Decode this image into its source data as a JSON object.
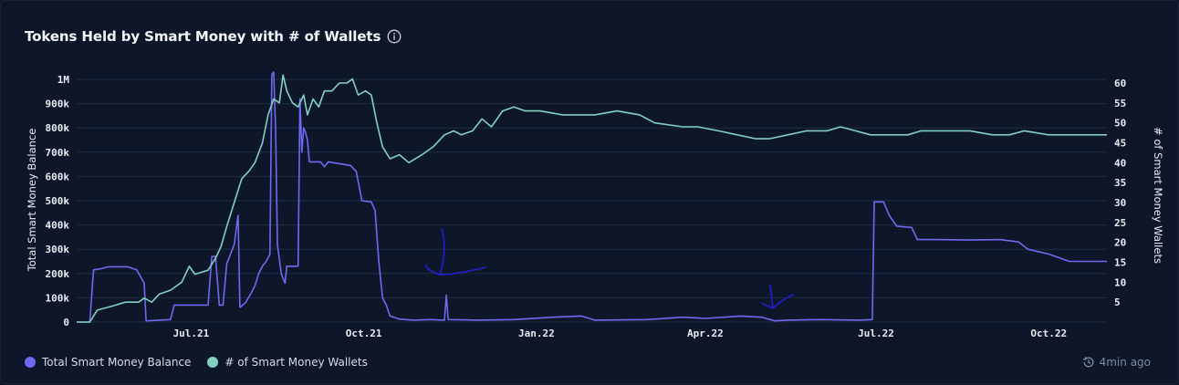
{
  "header": {
    "title": "Tokens Held by Smart Money with # of Wallets",
    "info_icon": "info-circle-icon"
  },
  "legend": {
    "updated": "4min ago",
    "clock_icon": "clock-refresh-icon"
  },
  "chart_data": {
    "type": "line",
    "title": "Tokens Held by Smart Money with # of Wallets",
    "x_axis": {
      "ticks": [
        "Jul.21",
        "Oct.21",
        "Jan.22",
        "Apr.22",
        "Jul.22",
        "Oct.22"
      ],
      "range": [
        "2021-05-01",
        "2022-11-01"
      ]
    },
    "y_left": {
      "label": "Total Smart Money Balance",
      "ticks": [
        "0",
        "100k",
        "200k",
        "300k",
        "400k",
        "500k",
        "600k",
        "700k",
        "800k",
        "900k",
        "1M"
      ],
      "range": [
        0,
        1000000
      ]
    },
    "y_right": {
      "label": "# of Smart Money Wallets",
      "ticks": [
        "5",
        "10",
        "15",
        "20",
        "25",
        "30",
        "35",
        "40",
        "45",
        "50",
        "55",
        "60"
      ],
      "range": [
        0,
        60
      ]
    },
    "grid": true,
    "legend_position": "bottom-left",
    "series": [
      {
        "name": "Total Smart Money Balance",
        "axis": "left",
        "color": "#7068f0",
        "points": [
          [
            "2021-05-01",
            0
          ],
          [
            "2021-05-08",
            0
          ],
          [
            "2021-05-10",
            215000
          ],
          [
            "2021-05-14",
            220000
          ],
          [
            "2021-05-18",
            228000
          ],
          [
            "2021-05-28",
            228000
          ],
          [
            "2021-06-02",
            215000
          ],
          [
            "2021-06-06",
            160000
          ],
          [
            "2021-06-07",
            5000
          ],
          [
            "2021-06-20",
            10000
          ],
          [
            "2021-06-22",
            70000
          ],
          [
            "2021-07-10",
            70000
          ],
          [
            "2021-07-12",
            270000
          ],
          [
            "2021-07-14",
            270000
          ],
          [
            "2021-07-16",
            70000
          ],
          [
            "2021-07-18",
            70000
          ],
          [
            "2021-07-20",
            240000
          ],
          [
            "2021-07-22",
            280000
          ],
          [
            "2021-07-24",
            320000
          ],
          [
            "2021-07-26",
            440000
          ],
          [
            "2021-07-27",
            60000
          ],
          [
            "2021-07-30",
            80000
          ],
          [
            "2021-08-02",
            120000
          ],
          [
            "2021-08-04",
            150000
          ],
          [
            "2021-08-06",
            200000
          ],
          [
            "2021-08-08",
            230000
          ],
          [
            "2021-08-10",
            250000
          ],
          [
            "2021-08-12",
            280000
          ],
          [
            "2021-08-13",
            1020000
          ],
          [
            "2021-08-14",
            1030000
          ],
          [
            "2021-08-15",
            800000
          ],
          [
            "2021-08-16",
            320000
          ],
          [
            "2021-08-18",
            200000
          ],
          [
            "2021-08-20",
            160000
          ],
          [
            "2021-08-21",
            230000
          ],
          [
            "2021-08-27",
            230000
          ],
          [
            "2021-08-28",
            920000
          ],
          [
            "2021-08-29",
            700000
          ],
          [
            "2021-08-30",
            800000
          ],
          [
            "2021-08-31",
            780000
          ],
          [
            "2021-09-01",
            750000
          ],
          [
            "2021-09-02",
            660000
          ],
          [
            "2021-09-08",
            660000
          ],
          [
            "2021-09-10",
            640000
          ],
          [
            "2021-09-12",
            660000
          ],
          [
            "2021-09-20",
            650000
          ],
          [
            "2021-09-24",
            645000
          ],
          [
            "2021-09-27",
            620000
          ],
          [
            "2021-09-30",
            500000
          ],
          [
            "2021-10-05",
            495000
          ],
          [
            "2021-10-07",
            460000
          ],
          [
            "2021-10-09",
            250000
          ],
          [
            "2021-10-11",
            100000
          ],
          [
            "2021-10-13",
            70000
          ],
          [
            "2021-10-15",
            25000
          ],
          [
            "2021-10-20",
            12000
          ],
          [
            "2021-10-28",
            8000
          ],
          [
            "2021-11-05",
            10000
          ],
          [
            "2021-11-13",
            8000
          ],
          [
            "2021-11-14",
            110000
          ],
          [
            "2021-11-15",
            10000
          ],
          [
            "2021-12-01",
            8000
          ],
          [
            "2021-12-20",
            10000
          ],
          [
            "2022-01-10",
            20000
          ],
          [
            "2022-01-25",
            25000
          ],
          [
            "2022-02-01",
            8000
          ],
          [
            "2022-03-01",
            10000
          ],
          [
            "2022-03-20",
            20000
          ],
          [
            "2022-04-01",
            15000
          ],
          [
            "2022-04-20",
            25000
          ],
          [
            "2022-05-01",
            20000
          ],
          [
            "2022-05-08",
            5000
          ],
          [
            "2022-05-15",
            8000
          ],
          [
            "2022-06-01",
            10000
          ],
          [
            "2022-06-22",
            8000
          ],
          [
            "2022-06-29",
            10000
          ],
          [
            "2022-06-30",
            495000
          ],
          [
            "2022-07-05",
            495000
          ],
          [
            "2022-07-08",
            440000
          ],
          [
            "2022-07-12",
            395000
          ],
          [
            "2022-07-20",
            390000
          ],
          [
            "2022-07-23",
            340000
          ],
          [
            "2022-08-01",
            340000
          ],
          [
            "2022-08-20",
            338000
          ],
          [
            "2022-09-05",
            340000
          ],
          [
            "2022-09-15",
            330000
          ],
          [
            "2022-09-20",
            300000
          ],
          [
            "2022-10-01",
            280000
          ],
          [
            "2022-10-12",
            250000
          ],
          [
            "2022-11-01",
            250000
          ]
        ]
      },
      {
        "name": "# of Smart Money Wallets",
        "axis": "right",
        "color": "#84d0c0",
        "points": [
          [
            "2021-05-01",
            0
          ],
          [
            "2021-05-08",
            0
          ],
          [
            "2021-05-12",
            3
          ],
          [
            "2021-05-20",
            4
          ],
          [
            "2021-05-27",
            5
          ],
          [
            "2021-06-03",
            5
          ],
          [
            "2021-06-06",
            6
          ],
          [
            "2021-06-10",
            5
          ],
          [
            "2021-06-14",
            7
          ],
          [
            "2021-06-20",
            8
          ],
          [
            "2021-06-26",
            10
          ],
          [
            "2021-06-30",
            14
          ],
          [
            "2021-07-03",
            12
          ],
          [
            "2021-07-10",
            13
          ],
          [
            "2021-07-14",
            16
          ],
          [
            "2021-07-17",
            19
          ],
          [
            "2021-07-20",
            24
          ],
          [
            "2021-07-24",
            30
          ],
          [
            "2021-07-28",
            36
          ],
          [
            "2021-08-01",
            38
          ],
          [
            "2021-08-04",
            40
          ],
          [
            "2021-08-08",
            45
          ],
          [
            "2021-08-11",
            52
          ],
          [
            "2021-08-14",
            56
          ],
          [
            "2021-08-17",
            55
          ],
          [
            "2021-08-19",
            62
          ],
          [
            "2021-08-21",
            58
          ],
          [
            "2021-08-24",
            55
          ],
          [
            "2021-08-27",
            54
          ],
          [
            "2021-08-30",
            57
          ],
          [
            "2021-09-01",
            52
          ],
          [
            "2021-09-04",
            56
          ],
          [
            "2021-09-07",
            54
          ],
          [
            "2021-09-10",
            58
          ],
          [
            "2021-09-14",
            58
          ],
          [
            "2021-09-18",
            60
          ],
          [
            "2021-09-22",
            60
          ],
          [
            "2021-09-25",
            61
          ],
          [
            "2021-09-28",
            57
          ],
          [
            "2021-10-02",
            58
          ],
          [
            "2021-10-05",
            57
          ],
          [
            "2021-10-08",
            50
          ],
          [
            "2021-10-11",
            44
          ],
          [
            "2021-10-15",
            41
          ],
          [
            "2021-10-20",
            42
          ],
          [
            "2021-10-25",
            40
          ],
          [
            "2021-11-01",
            42
          ],
          [
            "2021-11-07",
            44
          ],
          [
            "2021-11-13",
            47
          ],
          [
            "2021-11-18",
            48
          ],
          [
            "2021-11-22",
            47
          ],
          [
            "2021-11-28",
            48
          ],
          [
            "2021-12-03",
            51
          ],
          [
            "2021-12-08",
            49
          ],
          [
            "2021-12-14",
            53
          ],
          [
            "2021-12-20",
            54
          ],
          [
            "2021-12-26",
            53
          ],
          [
            "2022-01-03",
            53
          ],
          [
            "2022-01-15",
            52
          ],
          [
            "2022-01-25",
            52
          ],
          [
            "2022-02-01",
            52
          ],
          [
            "2022-02-13",
            53
          ],
          [
            "2022-02-25",
            52
          ],
          [
            "2022-03-05",
            50
          ],
          [
            "2022-03-20",
            49
          ],
          [
            "2022-03-28",
            49
          ],
          [
            "2022-04-08",
            48
          ],
          [
            "2022-04-18",
            47
          ],
          [
            "2022-04-28",
            46
          ],
          [
            "2022-05-05",
            46
          ],
          [
            "2022-05-15",
            47
          ],
          [
            "2022-05-25",
            48
          ],
          [
            "2022-06-05",
            48
          ],
          [
            "2022-06-12",
            49
          ],
          [
            "2022-06-20",
            48
          ],
          [
            "2022-06-28",
            47
          ],
          [
            "2022-07-10",
            47
          ],
          [
            "2022-07-18",
            47
          ],
          [
            "2022-07-25",
            48
          ],
          [
            "2022-08-10",
            48
          ],
          [
            "2022-08-20",
            48
          ],
          [
            "2022-09-01",
            47
          ],
          [
            "2022-09-10",
            47
          ],
          [
            "2022-09-18",
            48
          ],
          [
            "2022-10-01",
            47
          ],
          [
            "2022-10-15",
            47
          ],
          [
            "2022-10-20",
            47
          ],
          [
            "2022-11-01",
            47
          ]
        ]
      }
    ]
  },
  "colors": {
    "background": "#0e1729",
    "grid": "#212c42",
    "balance": "#7068f0",
    "wallets": "#84d0c0",
    "annotation": "#1d1fd0"
  }
}
